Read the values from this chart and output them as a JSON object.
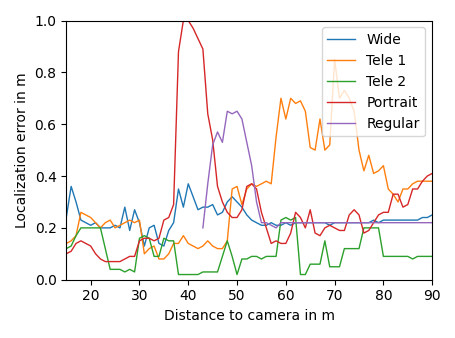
{
  "xlabel": "Distance to camera in m",
  "ylabel": "Localization error in m",
  "xlim": [
    15,
    90
  ],
  "ylim": [
    0.0,
    1.0
  ],
  "xticks": [
    20,
    30,
    40,
    50,
    60,
    70,
    80,
    90
  ],
  "yticks": [
    0.0,
    0.2,
    0.4,
    0.6,
    0.8,
    1.0
  ],
  "legend_labels": [
    "Wide",
    "Tele 1",
    "Tele 2",
    "Portrait",
    "Regular"
  ],
  "colors": {
    "Wide": "#1f77b4",
    "Tele 1": "#ff7f0e",
    "Tele 2": "#2ca02c",
    "Portrait": "#d62728",
    "Regular": "#9467bd"
  },
  "Wide": {
    "x": [
      15,
      16,
      17,
      18,
      19,
      20,
      21,
      22,
      23,
      24,
      25,
      26,
      27,
      28,
      29,
      30,
      31,
      32,
      33,
      34,
      35,
      36,
      37,
      38,
      39,
      40,
      41,
      42,
      43,
      44,
      45,
      46,
      47,
      48,
      49,
      50,
      51,
      52,
      53,
      54,
      55,
      56,
      57,
      58,
      59,
      60,
      61,
      62,
      63,
      64,
      65,
      66,
      67,
      68,
      69,
      70,
      71,
      72,
      73,
      74,
      75,
      76,
      77,
      78,
      79,
      80,
      81,
      82,
      83,
      84,
      85,
      86,
      87,
      88,
      89,
      90
    ],
    "y": [
      0.24,
      0.36,
      0.3,
      0.23,
      0.22,
      0.21,
      0.22,
      0.2,
      0.2,
      0.2,
      0.21,
      0.2,
      0.28,
      0.19,
      0.27,
      0.22,
      0.13,
      0.2,
      0.21,
      0.14,
      0.13,
      0.19,
      0.22,
      0.35,
      0.28,
      0.37,
      0.32,
      0.27,
      0.28,
      0.28,
      0.29,
      0.25,
      0.26,
      0.3,
      0.32,
      0.3,
      0.28,
      0.25,
      0.23,
      0.22,
      0.21,
      0.21,
      0.22,
      0.21,
      0.21,
      0.22,
      0.21,
      0.22,
      0.22,
      0.22,
      0.22,
      0.22,
      0.22,
      0.22,
      0.21,
      0.22,
      0.22,
      0.22,
      0.22,
      0.22,
      0.22,
      0.22,
      0.22,
      0.23,
      0.22,
      0.23,
      0.23,
      0.23,
      0.23,
      0.23,
      0.23,
      0.23,
      0.23,
      0.24,
      0.24,
      0.25
    ]
  },
  "Tele 1": {
    "x": [
      15,
      16,
      17,
      18,
      19,
      20,
      21,
      22,
      23,
      24,
      25,
      26,
      27,
      28,
      29,
      30,
      31,
      32,
      33,
      34,
      35,
      36,
      37,
      38,
      39,
      40,
      41,
      42,
      43,
      44,
      45,
      46,
      47,
      48,
      49,
      50,
      51,
      52,
      53,
      54,
      55,
      56,
      57,
      58,
      59,
      60,
      61,
      62,
      63,
      64,
      65,
      66,
      67,
      68,
      69,
      70,
      71,
      72,
      73,
      74,
      75,
      76,
      77,
      78,
      79,
      80,
      81,
      82,
      83,
      84,
      85,
      86,
      87,
      88,
      89,
      90
    ],
    "y": [
      0.14,
      0.15,
      0.17,
      0.26,
      0.25,
      0.24,
      0.22,
      0.2,
      0.22,
      0.23,
      0.2,
      0.21,
      0.22,
      0.23,
      0.22,
      0.23,
      0.1,
      0.12,
      0.13,
      0.08,
      0.08,
      0.1,
      0.14,
      0.14,
      0.17,
      0.14,
      0.13,
      0.12,
      0.13,
      0.15,
      0.13,
      0.12,
      0.12,
      0.15,
      0.35,
      0.36,
      0.29,
      0.35,
      0.37,
      0.36,
      0.37,
      0.38,
      0.37,
      0.55,
      0.7,
      0.62,
      0.7,
      0.68,
      0.69,
      0.65,
      0.51,
      0.5,
      0.62,
      0.5,
      0.52,
      0.85,
      0.7,
      0.73,
      0.7,
      0.65,
      0.5,
      0.42,
      0.48,
      0.41,
      0.42,
      0.44,
      0.35,
      0.33,
      0.3,
      0.35,
      0.35,
      0.37,
      0.38,
      0.38,
      0.38,
      0.38
    ]
  },
  "Tele 2": {
    "x": [
      15,
      16,
      17,
      18,
      19,
      20,
      21,
      22,
      23,
      24,
      25,
      26,
      27,
      28,
      29,
      30,
      31,
      32,
      33,
      34,
      35,
      36,
      37,
      38,
      39,
      40,
      41,
      42,
      43,
      44,
      45,
      46,
      47,
      48,
      49,
      50,
      51,
      52,
      53,
      54,
      55,
      56,
      57,
      58,
      59,
      60,
      61,
      62,
      63,
      64,
      65,
      66,
      67,
      68,
      69,
      70,
      71,
      72,
      73,
      74,
      75,
      76,
      77,
      78,
      79,
      80,
      81,
      82,
      83,
      84,
      85,
      86,
      87,
      88,
      89,
      90
    ],
    "y": [
      0.12,
      0.13,
      0.17,
      0.2,
      0.2,
      0.2,
      0.2,
      0.2,
      0.12,
      0.04,
      0.04,
      0.04,
      0.03,
      0.04,
      0.03,
      0.16,
      0.17,
      0.16,
      0.09,
      0.09,
      0.16,
      0.15,
      0.15,
      0.02,
      0.02,
      0.02,
      0.02,
      0.02,
      0.03,
      0.03,
      0.03,
      0.03,
      0.09,
      0.15,
      0.09,
      0.02,
      0.08,
      0.08,
      0.09,
      0.09,
      0.08,
      0.09,
      0.09,
      0.09,
      0.23,
      0.24,
      0.23,
      0.24,
      0.02,
      0.02,
      0.06,
      0.06,
      0.06,
      0.15,
      0.05,
      0.05,
      0.05,
      0.12,
      0.12,
      0.12,
      0.12,
      0.2,
      0.2,
      0.2,
      0.2,
      0.09,
      0.09,
      0.09,
      0.09,
      0.09,
      0.09,
      0.08,
      0.09,
      0.09,
      0.09,
      0.09
    ]
  },
  "Portrait": {
    "x": [
      15,
      16,
      17,
      18,
      19,
      20,
      21,
      22,
      23,
      24,
      25,
      26,
      27,
      28,
      29,
      30,
      31,
      32,
      33,
      34,
      35,
      36,
      37,
      38,
      39,
      40,
      41,
      42,
      43,
      44,
      45,
      46,
      47,
      48,
      49,
      50,
      51,
      52,
      53,
      54,
      55,
      56,
      57,
      58,
      59,
      60,
      61,
      62,
      63,
      64,
      65,
      66,
      67,
      68,
      69,
      70,
      71,
      72,
      73,
      74,
      75,
      76,
      77,
      78,
      79,
      80,
      81,
      82,
      83,
      84,
      85,
      86,
      87,
      88,
      89,
      90
    ],
    "y": [
      0.1,
      0.11,
      0.14,
      0.15,
      0.14,
      0.13,
      0.1,
      0.08,
      0.07,
      0.07,
      0.07,
      0.07,
      0.08,
      0.09,
      0.09,
      0.15,
      0.16,
      0.16,
      0.15,
      0.16,
      0.23,
      0.24,
      0.29,
      0.88,
      1.0,
      1.0,
      0.97,
      0.93,
      0.89,
      0.64,
      0.54,
      0.36,
      0.3,
      0.26,
      0.24,
      0.24,
      0.27,
      0.36,
      0.37,
      0.35,
      0.26,
      0.2,
      0.14,
      0.15,
      0.14,
      0.14,
      0.18,
      0.26,
      0.24,
      0.2,
      0.27,
      0.18,
      0.17,
      0.2,
      0.21,
      0.2,
      0.19,
      0.19,
      0.25,
      0.27,
      0.25,
      0.18,
      0.19,
      0.22,
      0.25,
      0.26,
      0.26,
      0.33,
      0.33,
      0.28,
      0.29,
      0.35,
      0.35,
      0.38,
      0.4,
      0.41
    ]
  },
  "Regular": {
    "x": [
      43,
      44,
      45,
      46,
      47,
      48,
      49,
      50,
      51,
      52,
      53,
      54,
      55,
      56,
      57,
      58,
      59,
      60,
      61,
      62,
      63,
      64,
      65,
      66,
      67,
      68,
      69,
      70,
      71,
      72,
      73,
      74,
      75,
      76,
      77,
      78,
      79,
      80,
      81,
      82,
      83,
      84,
      85,
      86,
      87,
      88,
      89,
      90
    ],
    "y": [
      0.2,
      0.37,
      0.52,
      0.57,
      0.53,
      0.65,
      0.64,
      0.65,
      0.62,
      0.53,
      0.44,
      0.3,
      0.22,
      0.22,
      0.21,
      0.2,
      0.22,
      0.22,
      0.22,
      0.22,
      0.22,
      0.22,
      0.22,
      0.22,
      0.22,
      0.22,
      0.22,
      0.22,
      0.22,
      0.22,
      0.22,
      0.22,
      0.22,
      0.22,
      0.22,
      0.22,
      0.22,
      0.22,
      0.22,
      0.22,
      0.22,
      0.22,
      0.22,
      0.22,
      0.22,
      0.22,
      0.22,
      0.22
    ]
  }
}
